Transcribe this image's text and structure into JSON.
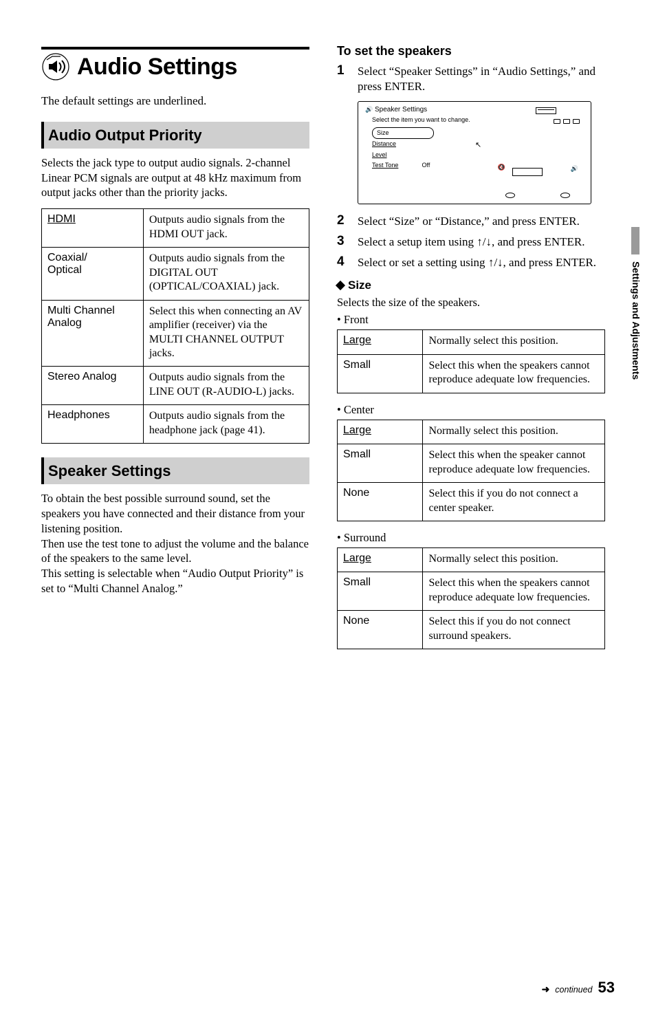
{
  "title": "Audio Settings",
  "intro": "The default settings are underlined.",
  "sections": {
    "audio_output_priority": {
      "heading": "Audio Output Priority",
      "para": "Selects the jack type to output audio signals. 2-channel Linear PCM signals are output at 48 kHz maximum from output jacks other than the priority jacks.",
      "rows": [
        {
          "key": "HDMI",
          "underlined": true,
          "val": "Outputs audio signals from the HDMI OUT jack."
        },
        {
          "key": "Coaxial/\nOptical",
          "underlined": false,
          "val": "Outputs audio signals from the DIGITAL OUT (OPTICAL/COAXIAL) jack."
        },
        {
          "key": "Multi Channel Analog",
          "underlined": false,
          "val": "Select this when connecting an AV amplifier (receiver) via the MULTI CHANNEL OUTPUT jacks."
        },
        {
          "key": "Stereo Analog",
          "underlined": false,
          "val": "Outputs audio signals from the LINE OUT (R-AUDIO-L) jacks."
        },
        {
          "key": "Headphones",
          "underlined": false,
          "val": "Outputs audio signals from the headphone jack (page 41)."
        }
      ]
    },
    "speaker_settings": {
      "heading": "Speaker Settings",
      "para": "To obtain the best possible surround sound, set the speakers you have connected and their distance from your listening position.\nThen use the test tone to adjust the volume and the balance of the speakers to the same level.\nThis setting is selectable when “Audio Output Priority” is set to “Multi Channel Analog.”"
    }
  },
  "right": {
    "subhead": "To set the speakers",
    "steps_top": [
      "Select “Speaker Settings” in “Audio Settings,” and press ENTER."
    ],
    "osd": {
      "title_icon_label": "Speaker Settings",
      "instruction": "Select the item you want to change.",
      "rows": [
        "Size",
        "Distance",
        "Level",
        "Test Tone"
      ],
      "test_tone_value": "Off"
    },
    "steps_bottom": [
      "Select “Size” or “Distance,” and press ENTER.",
      "Select a setup item using ↑/↓, and press ENTER.",
      "Select or set a setting using ↑/↓, and press ENTER."
    ],
    "size": {
      "heading": "Size",
      "intro": "Selects the size of the speakers.",
      "groups": [
        {
          "label": "• Front",
          "rows": [
            {
              "key": "Large",
              "underlined": true,
              "val": "Normally select this position."
            },
            {
              "key": "Small",
              "underlined": false,
              "val": "Select this when the speakers cannot reproduce adequate low frequencies."
            }
          ]
        },
        {
          "label": "• Center",
          "rows": [
            {
              "key": "Large",
              "underlined": true,
              "val": "Normally select this position."
            },
            {
              "key": "Small",
              "underlined": false,
              "val": "Select this when the speaker cannot reproduce adequate low frequencies."
            },
            {
              "key": "None",
              "underlined": false,
              "val": "Select this if you do not connect a center speaker."
            }
          ]
        },
        {
          "label": "• Surround",
          "rows": [
            {
              "key": "Large",
              "underlined": true,
              "val": "Normally select this position."
            },
            {
              "key": "Small",
              "underlined": false,
              "val": "Select this when the speakers cannot reproduce adequate low frequencies."
            },
            {
              "key": "None",
              "underlined": false,
              "val": "Select this if you do not connect surround speakers."
            }
          ]
        }
      ]
    }
  },
  "side_tab": "Settings and Adjustments",
  "footer": {
    "continued": "continued",
    "page": "53"
  }
}
